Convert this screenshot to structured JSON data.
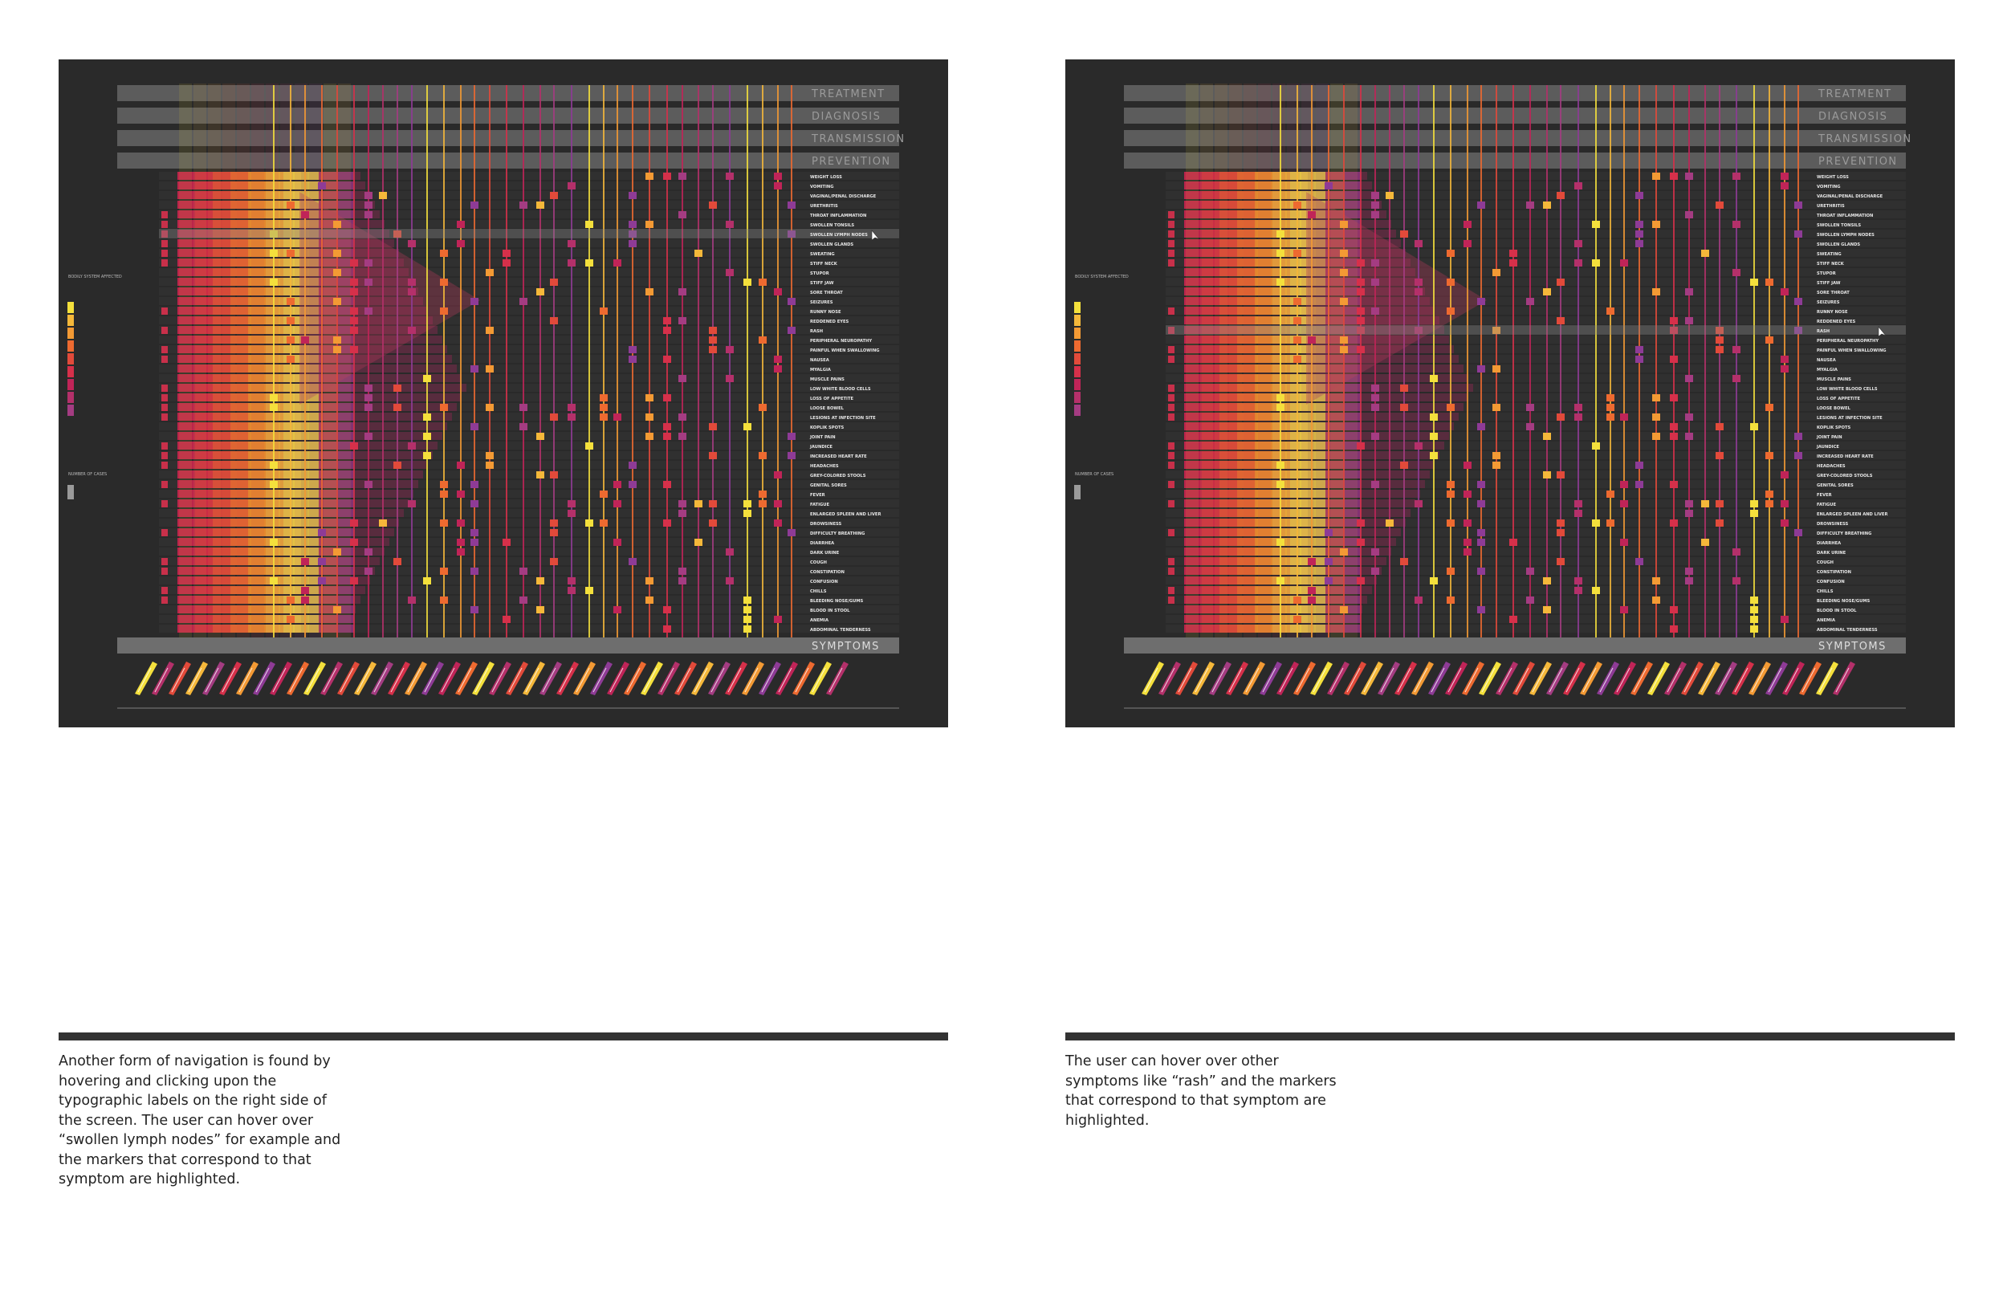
{
  "categories": [
    "TREATMENT",
    "DIAGNOSIS",
    "TRANSMISSION",
    "PREVENTION"
  ],
  "symptoms_label": "SYMPTOMS",
  "legend": {
    "body_system_label": "BODILY SYSTEM AFFECTED",
    "cases_label": "NUMBER OF CASES"
  },
  "symptoms": [
    "WEIGHT LOSS",
    "VOMITING",
    "VAGINAL/PENAL DISCHARGE",
    "URETHRITIS",
    "THROAT INFLAMMATION",
    "SWOLLEN TONSILS",
    "SWOLLEN LYMPH NODES",
    "SWOLLEN GLANDS",
    "SWEATING",
    "STIFF NECK",
    "STUPOR",
    "STIFF JAW",
    "SORE THROAT",
    "SEIZURES",
    "RUNNY NOSE",
    "REDDENED EYES",
    "RASH",
    "PERIPHERAL NEUROPATHY",
    "PAINFUL WHEN SWALLOWING",
    "NAUSEA",
    "MYALGIA",
    "MUSCLE PAINS",
    "LOW WHITE BLOOD CELLS",
    "LOSS OF APPETITE",
    "LOOSE BOWEL",
    "LESIONS AT INFECTION SITE",
    "KOPLIK SPOTS",
    "JOINT PAIN",
    "JAUNDICE",
    "INCREASED HEART RATE",
    "HEADACHES",
    "GREY-COLORED STOOLS",
    "GENITAL SORES",
    "FEVER",
    "FATIGUE",
    "ENLARGED SPLEEN AND LIVER",
    "DROWSINESS",
    "DIFFICULTY BREATHING",
    "DIARRHEA",
    "DARK URINE",
    "COUGH",
    "CONSTIPATION",
    "CONFUSION",
    "CHILLS",
    "BLEEDING NOSE/GUMS",
    "BLOOD IN STOOL",
    "ANEMIA",
    "ABDOMINAL TENDERNESS"
  ],
  "screens": [
    {
      "hover_symptom": "SWOLLEN LYMPH NODES",
      "caption": "Another form of navigation is found by hovering and clicking upon the typographic labels on the right side of the screen. The user can hover over “swollen lymph nodes” for example and the markers that correspond to that symptom are highlighted."
    },
    {
      "hover_symptom": "RASH",
      "caption": "The user can hover over other symptoms like “rash” and the markers that correspond to that symptom are highlighted."
    }
  ],
  "colors": {
    "background": "#2a2a2a",
    "category_bar": "#5c5c5c",
    "palette": [
      "#f4e03c",
      "#f5b83a",
      "#f39a34",
      "#ee6a30",
      "#e24a3a",
      "#d6304a",
      "#c02458",
      "#b4306a",
      "#a43c82",
      "#8e3b96"
    ]
  }
}
